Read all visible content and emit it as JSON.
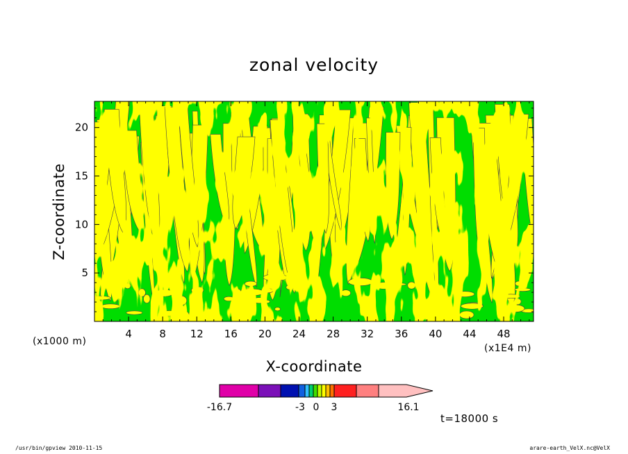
{
  "chart_data": {
    "type": "heatmap",
    "title": "zonal velocity",
    "xlabel": "X-coordinate",
    "ylabel": "Z-coordinate",
    "x_unit": "(x1E4 m)",
    "y_unit": "(x1000 m)",
    "xlim": [
      0,
      51.5
    ],
    "ylim": [
      0,
      22.7
    ],
    "x_ticks": [
      "4",
      "8",
      "12",
      "16",
      "20",
      "24",
      "28",
      "32",
      "36",
      "40",
      "44",
      "48"
    ],
    "y_ticks": [
      "5",
      "10",
      "15",
      "20"
    ],
    "grid": false,
    "colorbar": {
      "levels": [
        "-16.7",
        "-3",
        "0",
        "3",
        "16.1"
      ],
      "colors": [
        "#e000a8",
        "#7b10b8",
        "#0010b0",
        "#1060e0",
        "#30c0ff",
        "#00d070",
        "#40e000",
        "#c0ff00",
        "#ffff00",
        "#ffc000",
        "#ff7000",
        "#ff2020",
        "#ff8080",
        "#ffc0c0"
      ]
    },
    "fill_colors": {
      "negative_small": "#00dd00",
      "positive_small": "#ffff00"
    },
    "time": "t=18000 s"
  },
  "footer": {
    "left": "/usr/bin/gpview   2010-11-15",
    "right": "arare-earth_VelX.nc@VelX"
  }
}
